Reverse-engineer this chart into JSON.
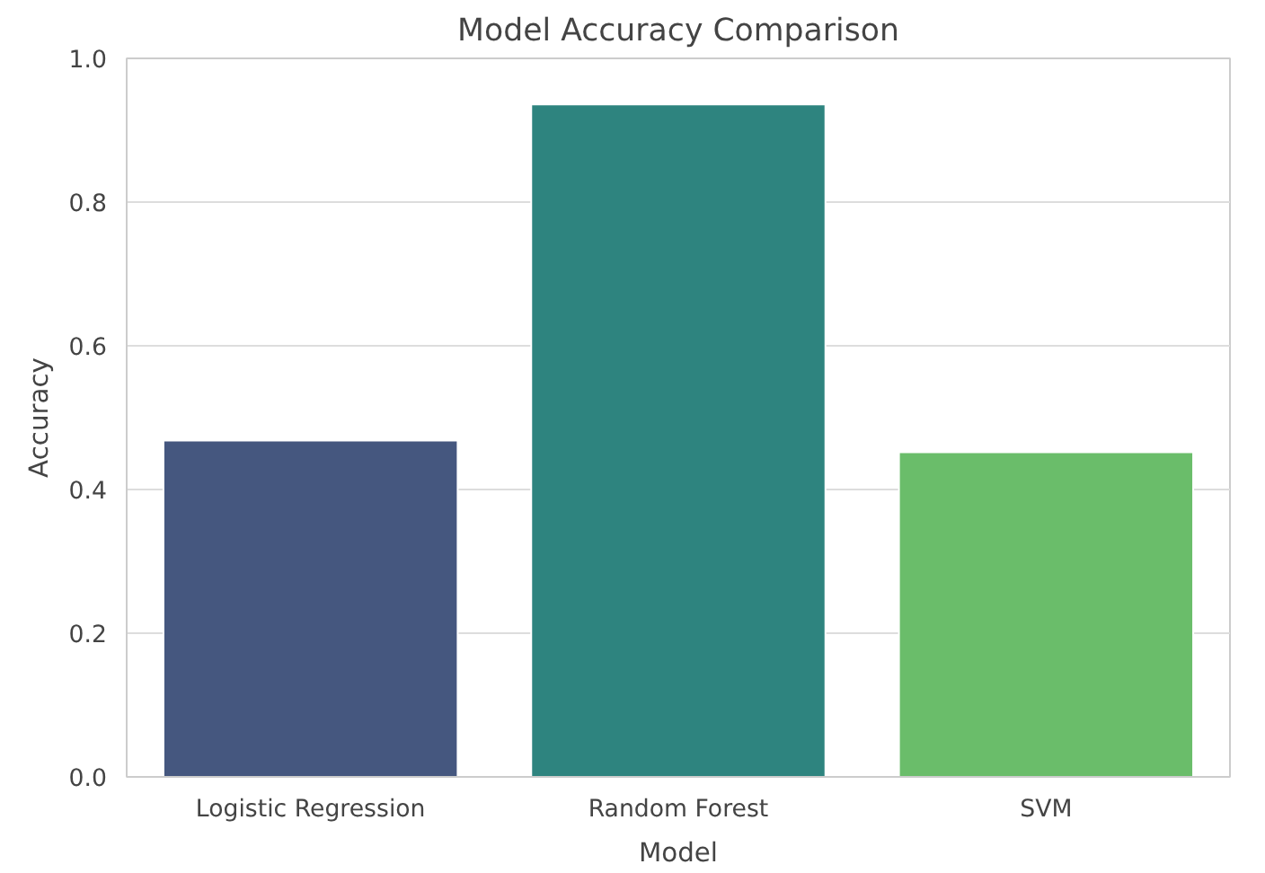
{
  "chart_data": {
    "type": "bar",
    "title": "Model Accuracy Comparison",
    "xlabel": "Model",
    "ylabel": "Accuracy",
    "categories": [
      "Logistic Regression",
      "Random Forest",
      "SVM"
    ],
    "values": [
      0.468,
      0.936,
      0.452
    ],
    "colors": [
      "#45577f",
      "#2e847f",
      "#6abd6a"
    ],
    "ylim": [
      0,
      1.0
    ],
    "yticks": [
      {
        "value": 0,
        "label": "0.0"
      },
      {
        "value": 0.2,
        "label": "0.2"
      },
      {
        "value": 0.4,
        "label": "0.4"
      },
      {
        "value": 0.6,
        "label": "0.6"
      },
      {
        "value": 0.8,
        "label": "0.8"
      },
      {
        "value": 1.0,
        "label": "1.0"
      }
    ],
    "grid": "y"
  }
}
